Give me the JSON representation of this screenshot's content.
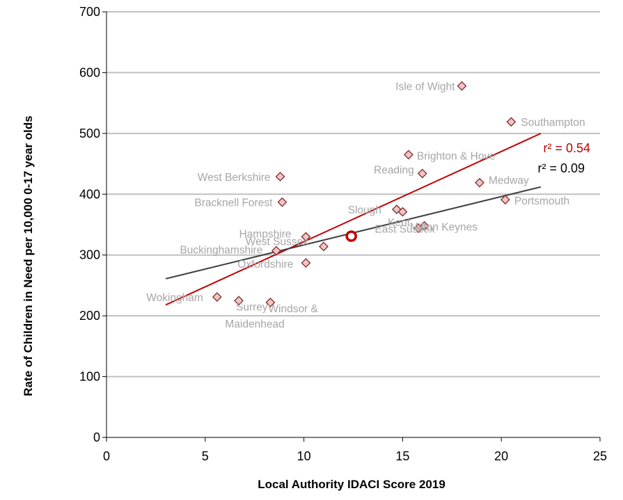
{
  "chart_data": {
    "type": "scatter",
    "title": "",
    "xlabel": "Local Authority IDACI Score 2019",
    "ylabel": "Rate of Children in Need per 10,000 0-17 year olds",
    "xlim": [
      0,
      25
    ],
    "ylim": [
      0,
      700
    ],
    "xticks": [
      "0",
      "5",
      "10",
      "15",
      "20",
      "25"
    ],
    "yticks": [
      "0",
      "100",
      "200",
      "300",
      "400",
      "500",
      "600",
      "700"
    ],
    "grid": "horizontal",
    "legend": "none",
    "points": [
      {
        "name": "Isle of Wight",
        "x": 18.0,
        "y": 578
      },
      {
        "name": "Southampton",
        "x": 20.5,
        "y": 519
      },
      {
        "name": "Brighton & Hove",
        "x": 15.3,
        "y": 465
      },
      {
        "name": "Reading",
        "x": 16.0,
        "y": 434
      },
      {
        "name": "West Berkshire",
        "x": 8.8,
        "y": 429
      },
      {
        "name": "Medway",
        "x": 18.9,
        "y": 419
      },
      {
        "name": "Portsmouth",
        "x": 20.2,
        "y": 391
      },
      {
        "name": "Bracknell Forest",
        "x": 8.9,
        "y": 387
      },
      {
        "name": "Slough",
        "x": 14.7,
        "y": 375
      },
      {
        "name": "East Sussex",
        "x": 15.0,
        "y": 371
      },
      {
        "name": "Milton Keynes",
        "x": 16.1,
        "y": 348
      },
      {
        "name": "Kent",
        "x": 15.8,
        "y": 344
      },
      {
        "name": "Hampshire",
        "x": 10.1,
        "y": 330
      },
      {
        "name": "West Sussex",
        "x": 11.0,
        "y": 314
      },
      {
        "name": "Buckinghamshire",
        "x": 8.6,
        "y": 307
      },
      {
        "name": "Oxfordshire",
        "x": 10.1,
        "y": 287
      },
      {
        "name": "Wokingham",
        "x": 5.6,
        "y": 231
      },
      {
        "name": "Surrey",
        "x": 6.7,
        "y": 225
      },
      {
        "name": "Windsor & Maidenhead",
        "x": 8.3,
        "y": 222
      }
    ],
    "highlight_point": {
      "x": 12.4,
      "y": 331
    },
    "trendlines": [
      {
        "x": [
          3,
          22
        ],
        "y": [
          218,
          500
        ],
        "color": "#c00000",
        "r2_label": "r² = 0.54"
      },
      {
        "x": [
          3,
          22
        ],
        "y": [
          261,
          412
        ],
        "color": "#404040",
        "r2_label": "r² = 0.09"
      }
    ],
    "colors": {
      "marker_fill": "#f2c4c4",
      "marker_stroke": "#7a2b2b",
      "highlight": "#c00000",
      "grid": "#c0c0c0",
      "label": "#a6a6a6"
    }
  }
}
